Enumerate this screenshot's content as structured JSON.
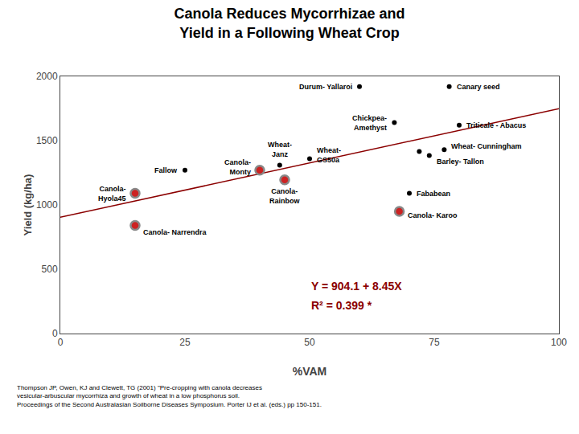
{
  "chart_data": {
    "type": "scatter",
    "title": "Canola Reduces Mycorrhizae and\nYield in a Following Wheat Crop",
    "x_label": "%VAM",
    "y_label": "Yield (kg/ha)",
    "xlim": [
      0,
      100
    ],
    "ylim": [
      0,
      2000
    ],
    "xticks": [
      0,
      25,
      50,
      75,
      100
    ],
    "yticks": [
      0,
      500,
      1000,
      1500,
      2000
    ],
    "grid": false,
    "series": [
      {
        "type": "line",
        "color": "#8B0000",
        "x": [
          0,
          100
        ],
        "values": [
          904.1,
          1749.1
        ]
      },
      {
        "type": "scatter",
        "color": "#CC2222",
        "x": [
          15,
          15,
          40,
          45,
          68
        ],
        "values": [
          1090,
          840,
          1270,
          1195,
          950
        ],
        "labels": [
          "Canola-\nHyola45",
          "Canola- Narrendra",
          "Canola-\nMonty",
          "Canola-\nRainbow",
          "Canola- Karoo"
        ]
      },
      {
        "type": "scatter",
        "color": "#000000",
        "x": [
          25,
          44,
          50,
          60,
          78,
          67,
          80,
          77,
          74,
          72,
          70
        ],
        "values": [
          1270,
          1310,
          1360,
          1920,
          1920,
          1640,
          1620,
          1430,
          1385,
          1415,
          1090
        ],
        "labels": [
          "Fallow",
          "Wheat-\nJanz",
          "Wheat-\nGS50a",
          "Durum- Yallaroi",
          "Canary seed",
          "Chickpea-\nAmethyst",
          "Triticale - Abacus",
          "Wheat- Cunningham",
          "Barley- Tallon",
          null,
          "Fababean"
        ]
      }
    ],
    "annotations": [
      {
        "text": "Y = 904.1 + 8.45X",
        "color": "#8B0000"
      },
      {
        "text": "R² = 0.399 *",
        "color": "#8B0000"
      }
    ],
    "footnote": "Thompson JP, Owen, KJ and Clewett, TG (2001) \"Pre-cropping with canola decreases\nvesicular-arbuscular mycorrhiza and growth of wheat in a low phosphorus soil.\nProceedings of the Second Australasian Soilborne Diseases Symposium. Porter IJ et al. (eds.) pp 150-151."
  }
}
